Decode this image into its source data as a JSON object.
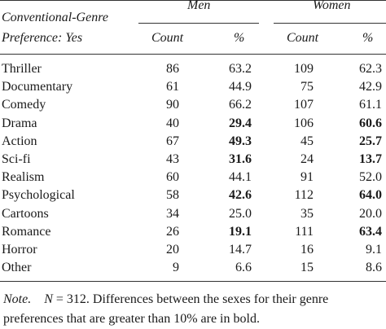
{
  "header": {
    "stub_line1": "Conventional-Genre",
    "stub_line2": "Preference: Yes",
    "group_men": "Men",
    "group_women": "Women",
    "col_count": "Count",
    "col_pct": "%"
  },
  "rows": [
    {
      "genre": "Thriller",
      "men_count": "86",
      "men_pct": "63.2",
      "men_bold": false,
      "women_count": "109",
      "women_pct": "62.3",
      "women_bold": false
    },
    {
      "genre": "Documentary",
      "men_count": "61",
      "men_pct": "44.9",
      "men_bold": false,
      "women_count": "75",
      "women_pct": "42.9",
      "women_bold": false
    },
    {
      "genre": "Comedy",
      "men_count": "90",
      "men_pct": "66.2",
      "men_bold": false,
      "women_count": "107",
      "women_pct": "61.1",
      "women_bold": false
    },
    {
      "genre": "Drama",
      "men_count": "40",
      "men_pct": "29.4",
      "men_bold": true,
      "women_count": "106",
      "women_pct": "60.6",
      "women_bold": true
    },
    {
      "genre": "Action",
      "men_count": "67",
      "men_pct": "49.3",
      "men_bold": true,
      "women_count": "45",
      "women_pct": "25.7",
      "women_bold": true
    },
    {
      "genre": "Sci-fi",
      "men_count": "43",
      "men_pct": "31.6",
      "men_bold": true,
      "women_count": "24",
      "women_pct": "13.7",
      "women_bold": true
    },
    {
      "genre": "Realism",
      "men_count": "60",
      "men_pct": "44.1",
      "men_bold": false,
      "women_count": "91",
      "women_pct": "52.0",
      "women_bold": false
    },
    {
      "genre": "Psychological",
      "men_count": "58",
      "men_pct": "42.6",
      "men_bold": true,
      "women_count": "112",
      "women_pct": "64.0",
      "women_bold": true
    },
    {
      "genre": "Cartoons",
      "men_count": "34",
      "men_pct": "25.0",
      "men_bold": false,
      "women_count": "35",
      "women_pct": "20.0",
      "women_bold": false
    },
    {
      "genre": "Romance",
      "men_count": "26",
      "men_pct": "19.1",
      "men_bold": true,
      "women_count": "111",
      "women_pct": "63.4",
      "women_bold": true
    },
    {
      "genre": "Horror",
      "men_count": "20",
      "men_pct": "14.7",
      "men_bold": false,
      "women_count": "16",
      "women_pct": "9.1",
      "women_bold": false
    },
    {
      "genre": "Other",
      "men_count": "9",
      "men_pct": "6.6",
      "men_bold": false,
      "women_count": "15",
      "women_pct": "8.6",
      "women_bold": false
    }
  ],
  "note": {
    "label": "Note.",
    "n_symbol": "N",
    "line1_rest": " = 312. Differences between the sexes for their genre",
    "line2": "preferences that are greater than 10% are in bold."
  }
}
